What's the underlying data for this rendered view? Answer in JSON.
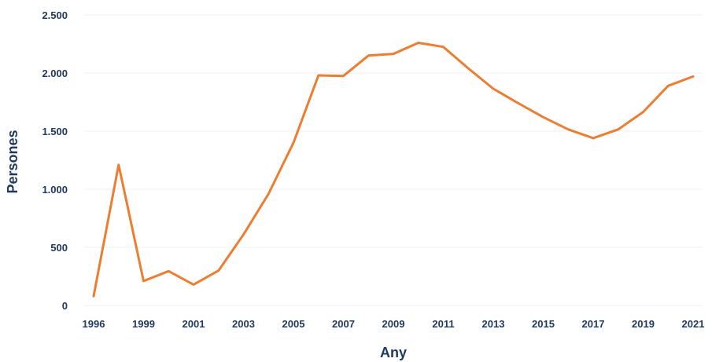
{
  "chart_data": {
    "type": "line",
    "title": "",
    "xlabel": "Any",
    "ylabel": "Persones",
    "ylim": [
      0,
      2500
    ],
    "y_ticks": [
      0,
      500,
      1000,
      1500,
      2000,
      2500
    ],
    "y_tick_labels": [
      "0",
      "500",
      "1.000",
      "1.500",
      "2.000",
      "2.500"
    ],
    "x_tick_labels": [
      "1996",
      "1999",
      "2001",
      "2003",
      "2005",
      "2007",
      "2009",
      "2011",
      "2013",
      "2015",
      "2017",
      "2019",
      "2021"
    ],
    "grid": true,
    "legend": "none",
    "colors": {
      "series": "#ed7d31",
      "text": "#1f3864",
      "grid": "#f2f2f2"
    },
    "series": [
      {
        "values": [
          80,
          1210,
          210,
          295,
          180,
          300,
          610,
          960,
          1400,
          1980,
          1975,
          2150,
          2165,
          2260,
          2225,
          2040,
          1865,
          1740,
          1620,
          1515,
          1440,
          1515,
          1665,
          1890,
          1970
        ]
      }
    ]
  }
}
